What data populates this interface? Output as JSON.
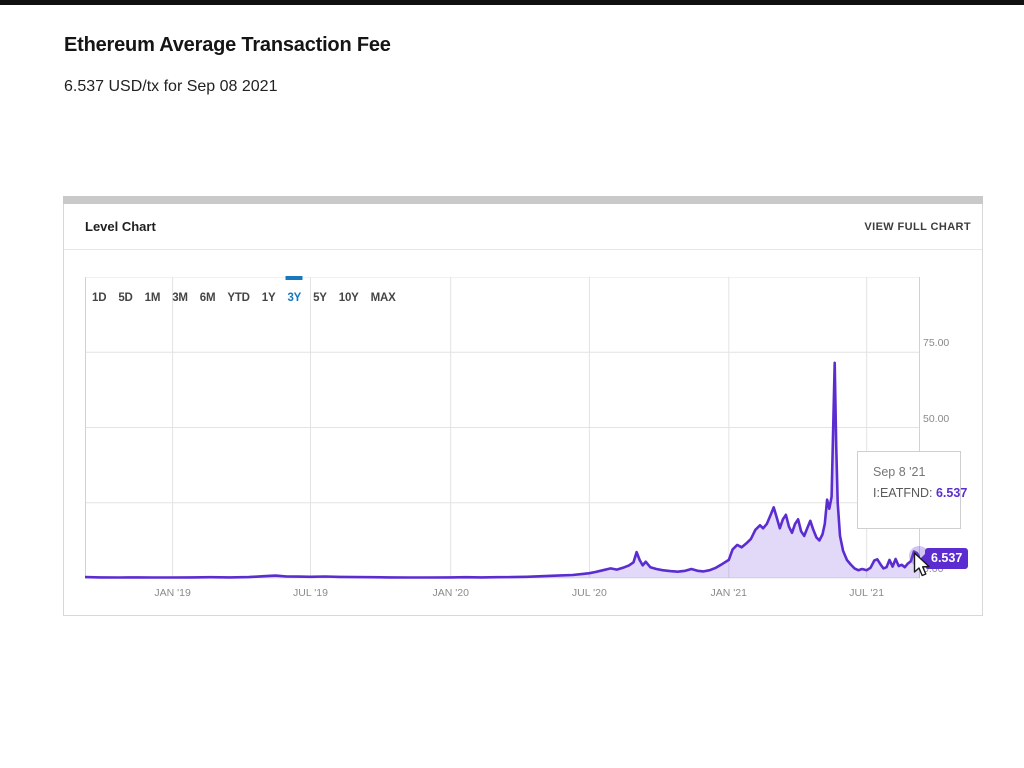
{
  "page": {
    "title": "Ethereum Average Transaction Fee",
    "subtitle": "6.537 USD/tx for Sep 08 2021"
  },
  "panel": {
    "header": "Level Chart",
    "view_full_chart": "VIEW FULL CHART"
  },
  "range_buttons": [
    {
      "label": "1D",
      "selected": false
    },
    {
      "label": "5D",
      "selected": false
    },
    {
      "label": "1M",
      "selected": false
    },
    {
      "label": "3M",
      "selected": false
    },
    {
      "label": "6M",
      "selected": false
    },
    {
      "label": "YTD",
      "selected": false
    },
    {
      "label": "1Y",
      "selected": false
    },
    {
      "label": "3Y",
      "selected": true
    },
    {
      "label": "5Y",
      "selected": false
    },
    {
      "label": "10Y",
      "selected": false
    },
    {
      "label": "MAX",
      "selected": false
    }
  ],
  "tooltip": {
    "date": "Sep 8 '21",
    "series_label": "I:EATFND:",
    "value": "6.537"
  },
  "value_badge": "6.537",
  "colors": {
    "accent_blue": "#1878be",
    "line_purple": "#5b2dd1",
    "area_fill": "rgba(91,45,209,0.18)",
    "grid": "#e3e3e3",
    "plot_border": "#d2d2d2",
    "axis_text": "#8a8a8a"
  },
  "chart_data": {
    "type": "area",
    "title": "Ethereum Average Transaction Fee",
    "series_name": "I:EATFND",
    "unit": "USD/tx",
    "selected_range": "3Y",
    "x_range": [
      "Sep 8 '18",
      "Sep 8 '21"
    ],
    "x_total_days": 1096,
    "ylim": [
      0,
      100
    ],
    "grid": true,
    "y_ticks": [
      {
        "value": 75,
        "label": "75.00"
      },
      {
        "value": 50,
        "label": "50.00"
      },
      {
        "value": 25,
        "label": "25.00"
      },
      {
        "value": 0,
        "label": "0.00"
      }
    ],
    "x_ticks": [
      {
        "day": 115,
        "label": "JAN '19"
      },
      {
        "day": 296,
        "label": "JUL '19"
      },
      {
        "day": 480,
        "label": "JAN '20"
      },
      {
        "day": 662,
        "label": "JUL '20"
      },
      {
        "day": 845,
        "label": "JAN '21"
      },
      {
        "day": 1026,
        "label": "JUL '21"
      }
    ],
    "points": [
      [
        0,
        0.3
      ],
      [
        20,
        0.2
      ],
      [
        45,
        0.15
      ],
      [
        70,
        0.2
      ],
      [
        90,
        0.15
      ],
      [
        115,
        0.15
      ],
      [
        140,
        0.2
      ],
      [
        165,
        0.25
      ],
      [
        190,
        0.2
      ],
      [
        215,
        0.3
      ],
      [
        235,
        0.6
      ],
      [
        250,
        0.8
      ],
      [
        265,
        0.5
      ],
      [
        280,
        0.45
      ],
      [
        296,
        0.4
      ],
      [
        315,
        0.5
      ],
      [
        335,
        0.35
      ],
      [
        355,
        0.3
      ],
      [
        375,
        0.25
      ],
      [
        400,
        0.2
      ],
      [
        425,
        0.15
      ],
      [
        450,
        0.15
      ],
      [
        480,
        0.2
      ],
      [
        500,
        0.25
      ],
      [
        520,
        0.2
      ],
      [
        540,
        0.25
      ],
      [
        560,
        0.3
      ],
      [
        580,
        0.4
      ],
      [
        600,
        0.6
      ],
      [
        620,
        0.8
      ],
      [
        640,
        1.0
      ],
      [
        655,
        1.4
      ],
      [
        662,
        1.6
      ],
      [
        670,
        2.0
      ],
      [
        680,
        2.6
      ],
      [
        690,
        3.2
      ],
      [
        698,
        2.8
      ],
      [
        706,
        3.4
      ],
      [
        714,
        4.2
      ],
      [
        720,
        5.2
      ],
      [
        724,
        8.6
      ],
      [
        728,
        6.0
      ],
      [
        732,
        4.2
      ],
      [
        736,
        5.4
      ],
      [
        742,
        3.6
      ],
      [
        750,
        3.0
      ],
      [
        758,
        2.6
      ],
      [
        768,
        2.3
      ],
      [
        778,
        2.1
      ],
      [
        788,
        2.4
      ],
      [
        796,
        3.0
      ],
      [
        804,
        2.4
      ],
      [
        812,
        2.2
      ],
      [
        820,
        2.6
      ],
      [
        828,
        3.4
      ],
      [
        836,
        4.6
      ],
      [
        845,
        6.0
      ],
      [
        850,
        9.5
      ],
      [
        856,
        11.0
      ],
      [
        862,
        10.2
      ],
      [
        868,
        11.5
      ],
      [
        874,
        13.0
      ],
      [
        880,
        16.0
      ],
      [
        886,
        17.5
      ],
      [
        890,
        16.5
      ],
      [
        895,
        18.0
      ],
      [
        900,
        21.0
      ],
      [
        904,
        23.5
      ],
      [
        908,
        20.0
      ],
      [
        912,
        16.5
      ],
      [
        916,
        19.5
      ],
      [
        920,
        21.0
      ],
      [
        924,
        17.0
      ],
      [
        928,
        15.0
      ],
      [
        932,
        18.0
      ],
      [
        936,
        19.5
      ],
      [
        940,
        15.5
      ],
      [
        944,
        14.0
      ],
      [
        948,
        16.5
      ],
      [
        952,
        19.0
      ],
      [
        956,
        16.0
      ],
      [
        960,
        13.5
      ],
      [
        964,
        12.5
      ],
      [
        968,
        14.5
      ],
      [
        971,
        18.0
      ],
      [
        974,
        26.0
      ],
      [
        977,
        23.0
      ],
      [
        980,
        27.0
      ],
      [
        984,
        71.5
      ],
      [
        986,
        44.0
      ],
      [
        988,
        25.0
      ],
      [
        991,
        14.0
      ],
      [
        995,
        9.0
      ],
      [
        1000,
        6.0
      ],
      [
        1005,
        4.5
      ],
      [
        1010,
        3.2
      ],
      [
        1015,
        2.6
      ],
      [
        1020,
        3.0
      ],
      [
        1026,
        2.6
      ],
      [
        1031,
        3.4
      ],
      [
        1036,
        5.8
      ],
      [
        1040,
        6.2
      ],
      [
        1044,
        4.6
      ],
      [
        1048,
        3.2
      ],
      [
        1052,
        3.6
      ],
      [
        1056,
        6.0
      ],
      [
        1060,
        3.8
      ],
      [
        1064,
        6.3
      ],
      [
        1068,
        4.0
      ],
      [
        1072,
        4.4
      ],
      [
        1076,
        3.6
      ],
      [
        1080,
        4.8
      ],
      [
        1084,
        5.6
      ],
      [
        1088,
        8.8
      ],
      [
        1092,
        8.2
      ],
      [
        1096,
        6.537
      ]
    ],
    "last_point": {
      "date": "Sep 8 '21",
      "value": 6.537
    }
  }
}
